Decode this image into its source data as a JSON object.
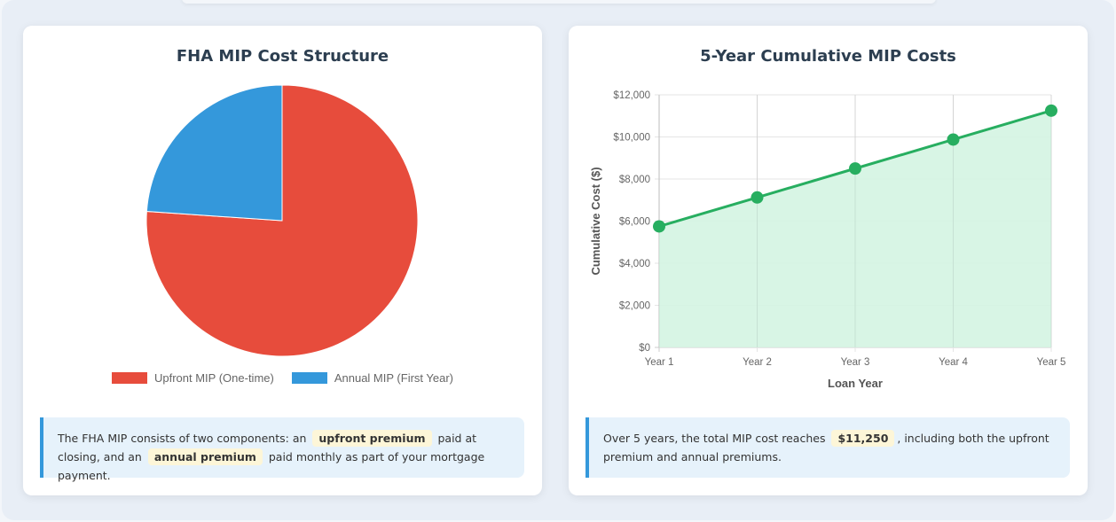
{
  "pie_card": {
    "title": "FHA MIP Cost Structure",
    "note": {
      "pre": "The FHA MIP consists of two components: an",
      "hl1": "upfront premium",
      "mid": "paid at closing, and an",
      "hl2": "annual premium",
      "post": "paid monthly as part of your mortgage payment."
    }
  },
  "line_card": {
    "title": "5-Year Cumulative MIP Costs",
    "note": {
      "pre": "Over 5 years, the total MIP cost reaches",
      "hl1": "$11,250",
      "post": ", including both the upfront premium and annual premiums."
    }
  },
  "chart_data": [
    {
      "type": "pie",
      "title": "FHA MIP Cost Structure",
      "categories": [
        "Upfront MIP (One-time)",
        "Annual MIP (First Year)"
      ],
      "values": [
        4375,
        1375
      ],
      "colors": [
        "#e74c3c",
        "#3498db"
      ],
      "legend": "bottom"
    },
    {
      "type": "line",
      "title": "5-Year Cumulative MIP Costs",
      "categories": [
        "Year 1",
        "Year 2",
        "Year 3",
        "Year 4",
        "Year 5"
      ],
      "values": [
        5750,
        7125,
        8500,
        9875,
        11250
      ],
      "xlabel": "Loan Year",
      "ylabel": "Cumulative Cost ($)",
      "ylim": [
        0,
        12000
      ],
      "yticks": [
        "$0",
        "$2,000",
        "$4,000",
        "$6,000",
        "$8,000",
        "$10,000",
        "$12,000"
      ],
      "grid": true,
      "fill": true,
      "color": "#27ae60",
      "fill_color": "#d4f4e2"
    }
  ]
}
